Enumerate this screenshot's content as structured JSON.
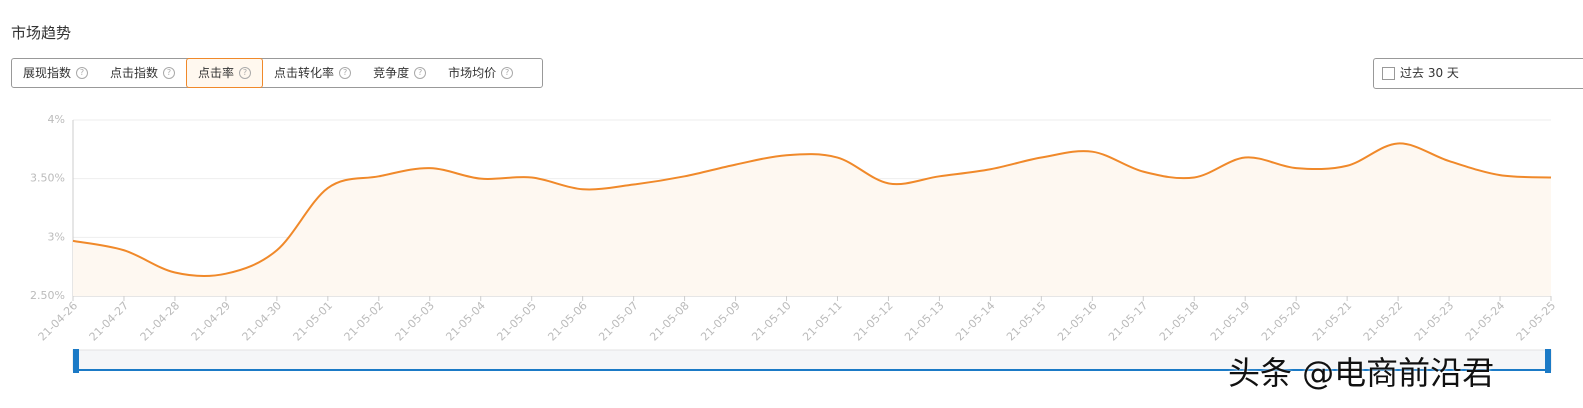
{
  "header": {
    "title": "市场趋势"
  },
  "tabs": [
    "展现指数",
    "点击指数",
    "点击率",
    "点击转化率",
    "竞争度",
    "市场均价"
  ],
  "active_tab": 2,
  "date_range": "过去 30 天",
  "watermark": "头条 @电商前沿君",
  "chart_data": {
    "type": "line",
    "categories": [
      "21-04-26",
      "21-04-27",
      "21-04-28",
      "21-04-29",
      "21-04-30",
      "21-05-01",
      "21-05-02",
      "21-05-03",
      "21-05-04",
      "21-05-05",
      "21-05-06",
      "21-05-07",
      "21-05-08",
      "21-05-09",
      "21-05-10",
      "21-05-11",
      "21-05-12",
      "21-05-13",
      "21-05-14",
      "21-05-15",
      "21-05-16",
      "21-05-17",
      "21-05-18",
      "21-05-19",
      "21-05-20",
      "21-05-21",
      "21-05-22",
      "21-05-23",
      "21-05-24",
      "21-05-25"
    ],
    "values": [
      2.97,
      2.89,
      2.7,
      2.69,
      2.89,
      3.42,
      3.52,
      3.59,
      3.5,
      3.51,
      3.41,
      3.45,
      3.52,
      3.62,
      3.7,
      3.68,
      3.46,
      3.52,
      3.58,
      3.68,
      3.73,
      3.56,
      3.51,
      3.68,
      3.59,
      3.61,
      3.8,
      3.65,
      3.53,
      3.51
    ],
    "color": "#f0892a",
    "ylim": [
      2.5,
      4
    ],
    "yticks": [
      {
        "value": 2.5,
        "label": "2.50%"
      },
      {
        "value": 3,
        "label": "3%"
      },
      {
        "value": 3.5,
        "label": "3.50%"
      },
      {
        "value": 4,
        "label": "4%"
      }
    ],
    "grid": true
  }
}
